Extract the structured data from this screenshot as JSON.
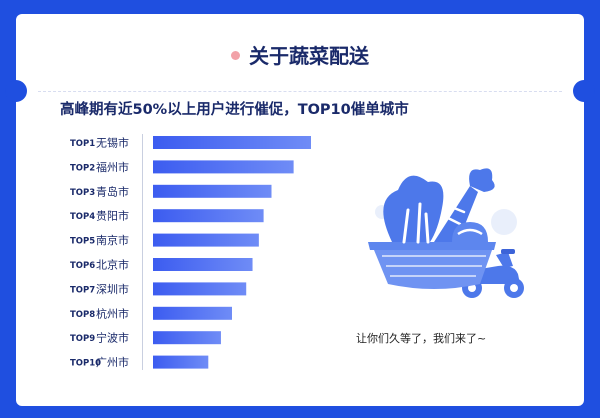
{
  "header": {
    "title": "关于蔬菜配送"
  },
  "subtitle": "高峰期有近50%以上用户进行催促，TOP10催单城市",
  "tagline": "让你们久等了，我们来了~",
  "illustration": {
    "icon": "vegetable-basket-scooter-icon"
  },
  "colors": {
    "background": "#1f4fe0",
    "bar_start": "#3c5cf0",
    "bar_end": "#6f8cf6",
    "title": "#1a2a6a"
  },
  "chart_data": {
    "type": "bar",
    "orientation": "horizontal",
    "ranks": [
      "TOP1",
      "TOP2",
      "TOP3",
      "TOP4",
      "TOP5",
      "TOP6",
      "TOP7",
      "TOP8",
      "TOP9",
      "TOP10"
    ],
    "categories": [
      "无锡市",
      "福州市",
      "青岛市",
      "贵阳市",
      "南京市",
      "北京市",
      "深圳市",
      "杭州市",
      "宁波市",
      "广州市"
    ],
    "values": [
      100,
      89,
      75,
      70,
      67,
      63,
      59,
      50,
      43,
      35
    ],
    "xlim": [
      0,
      100
    ],
    "value_labels": false,
    "grid": false
  }
}
